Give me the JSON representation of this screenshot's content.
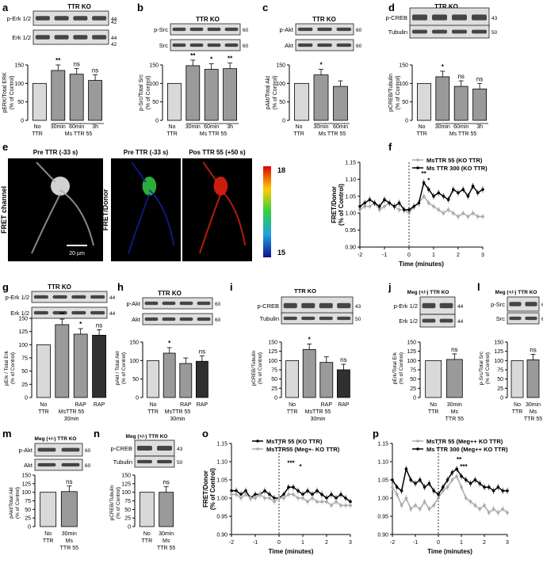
{
  "colors": {
    "no": "#d9d9d9",
    "ms": "#9a9a9a",
    "rap": "#303030",
    "blot_bg": "#dedede",
    "band": "#1e1e1e",
    "fret_hi": "#e02010",
    "fret_mid": "#30c040",
    "fret_lo": "#1020a0",
    "line_ko": "#000000",
    "line_gray": "#aaaaaa"
  },
  "panel_letters": [
    "a",
    "b",
    "c",
    "d",
    "e",
    "f",
    "g",
    "h",
    "i",
    "j",
    "l",
    "m",
    "n",
    "o",
    "p"
  ],
  "blot_titles": {
    "ttr_ko": "TTR KO",
    "meg_ko": "Meg (+/-) TTR KO"
  },
  "blot_labels": {
    "a": [
      "p-Erk 1/2",
      "Erk 1/2"
    ],
    "b": [
      "p-Src",
      "Src"
    ],
    "c": [
      "p-Akt",
      "Akt"
    ],
    "d": [
      "p-CREB",
      "Tubulin"
    ],
    "g": [
      "p-Erk 1/2",
      "Erk 1/2"
    ],
    "h": [
      "p-Akt",
      "Akt"
    ],
    "i": [
      "p-CREB",
      "Tubulin"
    ],
    "j": [
      "p-Erk 1/2",
      "Erk 1/2"
    ],
    "l": [
      "p-Src",
      "Src"
    ],
    "m": [
      "p-Akt",
      "Akt"
    ],
    "n": [
      "p-CREB",
      "Tubulin"
    ]
  },
  "mw": {
    "erk": [
      "44",
      "42"
    ],
    "src": "60",
    "akt": "60",
    "creb": "43",
    "tub": "50"
  },
  "xlabels": {
    "no": "No",
    "ttr": "TTR",
    "ms_ttr_55": "Ms TTR 55",
    "mst_55": "MsTTR 55",
    "m30": "30min",
    "m60": "60min",
    "h3": "3h",
    "rap": "RAP",
    "min30_it": "30min",
    "min30": "30min",
    "ms": "Ms",
    "ttr55": "TTR 55"
  },
  "ylabels": {
    "a": "pERK/Total ERK",
    "b": "p-Src/Total Src",
    "c": "pAkt/Total Akt",
    "d": "pCREB/Tubulin",
    "g": "pErk / Total Erk",
    "h": "pAkt / Total Akt",
    "i": "pCREB/Tubulin",
    "j": "pErk/Total Erk",
    "l": "p-Src/Total Src",
    "m": "pAkt/Total Akt",
    "n": "pCREB/Tubulin",
    "pct": "(% of Control)"
  },
  "sig": {
    "two": "**",
    "one": "*",
    "ns": "ns",
    "three": "***"
  },
  "ticks": {
    "y150": [
      "0",
      "50",
      "100",
      "150"
    ],
    "y150_25": [
      "0",
      "25",
      "50",
      "75",
      "100",
      "125",
      "150"
    ],
    "fret": [
      "0.90",
      "0.95",
      "1.00",
      "1.05",
      "1.10",
      "1.15"
    ],
    "t": [
      "-2",
      "-1",
      "0",
      "1",
      "2",
      "3"
    ]
  },
  "fret": {
    "ylabel": "FRET/Donor",
    "ylabel2": "(% of Control)",
    "xlabel": "Time (minutes)",
    "legend_f": [
      "MsTTR 55 (KO TTR)",
      "Ms TTR 300 (KO TTR)"
    ],
    "legend_o": [
      "MsTTR 55 (KO TTR)",
      "MsTTR55 (Meg+- KO TTR)"
    ],
    "legend_p": [
      "MsTTR 55 (Meg++ KO TTR)",
      "Ms TTR 300 (Meg++ KO TTR)"
    ]
  },
  "images": {
    "t1": "Pre TTR (-33 s)",
    "t2": "Pre TTR (-33 s)",
    "t3": "Pos TTR 55 (+50 s)",
    "side1": "FRET channel",
    "side2": "FRET/Donor",
    "scale": "20 µm",
    "cb_max": "18",
    "cb_min": "15"
  },
  "chart_data": [
    {
      "panel": "a",
      "type": "bar",
      "categories": [
        "No TTR",
        "30min",
        "60min",
        "3h"
      ],
      "values": [
        100,
        135,
        125,
        108
      ],
      "ylim": [
        0,
        150
      ]
    },
    {
      "panel": "b",
      "type": "bar",
      "categories": [
        "No TTR",
        "30min",
        "60min",
        "3h"
      ],
      "values": [
        100,
        148,
        138,
        140
      ],
      "ylim": [
        0,
        150
      ]
    },
    {
      "panel": "c",
      "type": "bar",
      "categories": [
        "No TTR",
        "30min",
        "60min"
      ],
      "values": [
        100,
        123,
        92
      ],
      "ylim": [
        0,
        150
      ]
    },
    {
      "panel": "d",
      "type": "bar",
      "categories": [
        "No TTR",
        "30min",
        "60min",
        "3h"
      ],
      "values": [
        100,
        118,
        92,
        85
      ],
      "ylim": [
        0,
        150
      ]
    },
    {
      "panel": "g",
      "type": "bar",
      "categories": [
        "No TTR",
        "MsTTR 55",
        "MsTTR 55 + RAP",
        "RAP"
      ],
      "values": [
        100,
        138,
        120,
        118
      ],
      "ylim": [
        0,
        150
      ]
    },
    {
      "panel": "h",
      "type": "bar",
      "categories": [
        "No TTR",
        "MsTTR 55",
        "MsTTR 55 + RAP",
        "RAP"
      ],
      "values": [
        100,
        120,
        92,
        98
      ],
      "ylim": [
        0,
        150
      ]
    },
    {
      "panel": "i",
      "type": "bar",
      "categories": [
        "No TTR",
        "MsTTR 55",
        "MsTTR 55 + RAP",
        "RAP"
      ],
      "values": [
        100,
        130,
        95,
        75
      ],
      "ylim": [
        0,
        150
      ]
    },
    {
      "panel": "j",
      "type": "bar",
      "categories": [
        "No TTR",
        "30min Ms TTR 55"
      ],
      "values": [
        100,
        103
      ],
      "ylim": [
        0,
        150
      ]
    },
    {
      "panel": "l",
      "type": "bar",
      "categories": [
        "No TTR",
        "30min Ms TTR 55"
      ],
      "values": [
        100,
        102
      ],
      "ylim": [
        0,
        150
      ]
    },
    {
      "panel": "m",
      "type": "bar",
      "categories": [
        "No TTR",
        "30min Ms TTR 55"
      ],
      "values": [
        100,
        102
      ],
      "ylim": [
        0,
        150
      ]
    },
    {
      "panel": "n",
      "type": "bar",
      "categories": [
        "No TTR",
        "30min Ms TTR 55"
      ],
      "values": [
        100,
        100
      ],
      "ylim": [
        0,
        150
      ]
    },
    {
      "panel": "f",
      "type": "line",
      "xlim": [
        -2,
        3
      ],
      "ylim": [
        0.9,
        1.15
      ],
      "x": [
        -2,
        -1.8,
        -1.6,
        -1.4,
        -1.2,
        -1,
        -0.8,
        -0.6,
        -0.4,
        -0.2,
        0,
        0.2,
        0.4,
        0.6,
        0.8,
        1,
        1.2,
        1.4,
        1.6,
        1.8,
        2,
        2.2,
        2.4,
        2.6,
        2.8,
        3
      ],
      "series": [
        {
          "name": "MsTTR 55 (KO TTR)",
          "values": [
            1.01,
            1.02,
            1.02,
            1.03,
            1.01,
            1.02,
            1.03,
            1.02,
            1.01,
            1.01,
            1.0,
            1.02,
            1.03,
            1.05,
            1.03,
            1.02,
            1.01,
            1.0,
            1.01,
            1.0,
            0.99,
            1.0,
            0.99,
            1.0,
            0.99,
            0.99
          ]
        },
        {
          "name": "Ms TTR 300 (KO TTR)",
          "values": [
            1.02,
            1.03,
            1.04,
            1.03,
            1.02,
            1.04,
            1.03,
            1.02,
            1.03,
            1.01,
            1.01,
            1.02,
            1.03,
            1.09,
            1.07,
            1.05,
            1.06,
            1.05,
            1.04,
            1.07,
            1.06,
            1.07,
            1.05,
            1.08,
            1.06,
            1.07
          ]
        }
      ]
    },
    {
      "panel": "o",
      "type": "line",
      "xlim": [
        -2,
        3
      ],
      "ylim": [
        0.9,
        1.15
      ],
      "x": [
        -2,
        -1.8,
        -1.6,
        -1.4,
        -1.2,
        -1,
        -0.8,
        -0.6,
        -0.4,
        -0.2,
        0,
        0.2,
        0.4,
        0.6,
        0.8,
        1,
        1.2,
        1.4,
        1.6,
        1.8,
        2,
        2.2,
        2.4,
        2.6,
        2.8,
        3
      ],
      "series": [
        {
          "name": "MsTTR 55 (KO TTR)",
          "values": [
            1.02,
            1.02,
            1.01,
            1.02,
            1.0,
            1.01,
            1.01,
            1.02,
            1.01,
            1.0,
            1.0,
            1.01,
            1.03,
            1.03,
            1.02,
            1.01,
            1.02,
            1.01,
            1.02,
            1.01,
            1.0,
            1.01,
            1.0,
            1.01,
            1.0,
            0.99
          ]
        },
        {
          "name": "MsTTR55 (Meg+- KO TTR)",
          "values": [
            1.01,
            1.01,
            1.0,
            1.01,
            1.0,
            1.0,
            1.01,
            1.0,
            1.0,
            0.99,
            1.0,
            1.0,
            1.01,
            1.01,
            1.0,
            1.0,
            0.99,
            1.0,
            0.99,
            0.99,
            0.99,
            0.98,
            0.99,
            0.98,
            0.98,
            0.98
          ]
        }
      ]
    },
    {
      "panel": "p",
      "type": "line",
      "xlim": [
        -2,
        3
      ],
      "ylim": [
        0.9,
        1.15
      ],
      "x": [
        -2,
        -1.8,
        -1.6,
        -1.4,
        -1.2,
        -1,
        -0.8,
        -0.6,
        -0.4,
        -0.2,
        0,
        0.2,
        0.4,
        0.6,
        0.8,
        1,
        1.2,
        1.4,
        1.6,
        1.8,
        2,
        2.2,
        2.4,
        2.6,
        2.8,
        3
      ],
      "series": [
        {
          "name": "MsTTR 55 (Meg++ KO TTR)",
          "values": [
            1.03,
            1.01,
            0.98,
            1.0,
            0.97,
            0.98,
            0.97,
            0.99,
            0.97,
            0.98,
            1.0,
            1.02,
            1.03,
            1.05,
            1.06,
            1.03,
            1.0,
            0.99,
            0.98,
            0.97,
            0.98,
            0.96,
            0.97,
            0.96,
            0.97,
            0.96
          ]
        },
        {
          "name": "Ms TTR 300 (Meg++ KO TTR)",
          "values": [
            1.05,
            1.03,
            1.02,
            1.08,
            1.05,
            1.04,
            1.05,
            1.03,
            1.04,
            1.02,
            1.01,
            1.03,
            1.05,
            1.07,
            1.08,
            1.06,
            1.05,
            1.04,
            1.05,
            1.04,
            1.03,
            1.03,
            1.02,
            1.03,
            1.02,
            1.02
          ]
        }
      ]
    }
  ]
}
